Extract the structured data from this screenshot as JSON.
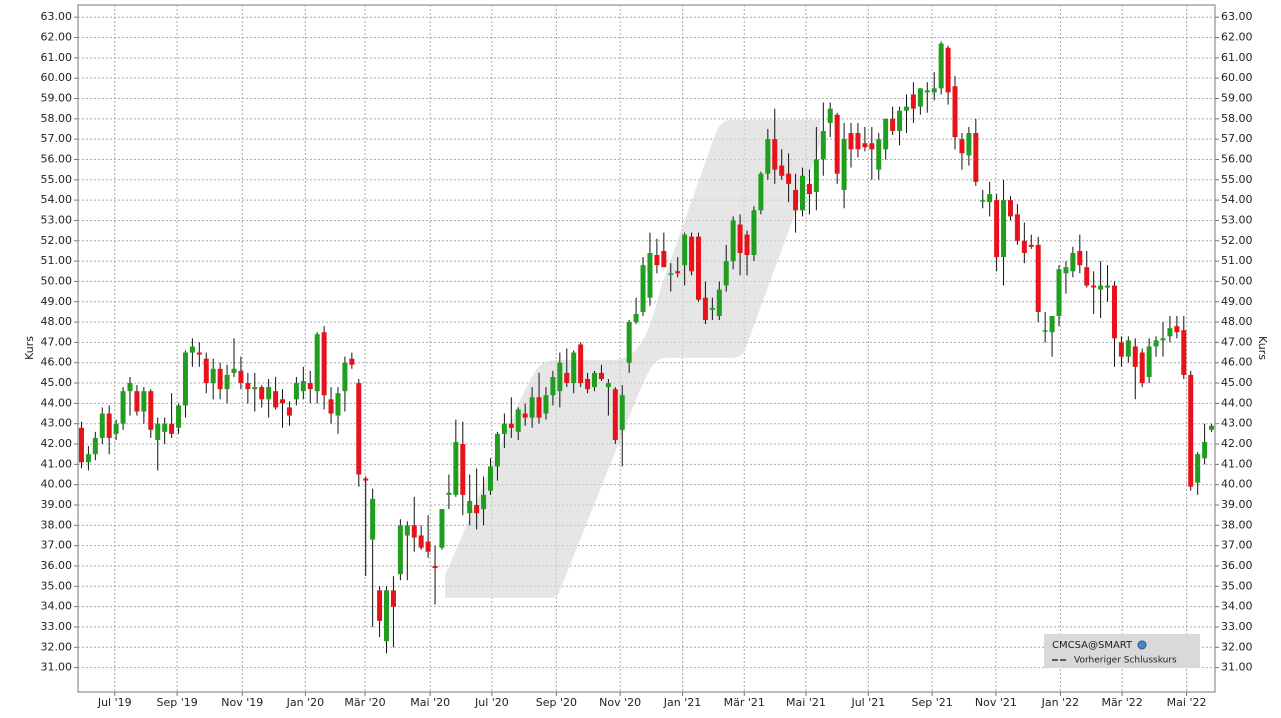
{
  "chart_data": {
    "type": "candlestick",
    "y_label": "Kurs",
    "grid": true,
    "legend": "bottom-right",
    "previous_close_label": "Vorheriger Schlusskurs",
    "xlim": [
      -0.5,
      163.5
    ],
    "xticks": [
      {
        "value": 4.8,
        "label": "Jul '19"
      },
      {
        "value": 13.8,
        "label": "Sep '19"
      },
      {
        "value": 23.2,
        "label": "Nov '19"
      },
      {
        "value": 32.3,
        "label": "Jan '20"
      },
      {
        "value": 40.9,
        "label": "Mär '20"
      },
      {
        "value": 50.3,
        "label": "Mai '20"
      },
      {
        "value": 59.2,
        "label": "Jul '20"
      },
      {
        "value": 68.5,
        "label": "Sep '20"
      },
      {
        "value": 77.7,
        "label": "Nov '20"
      },
      {
        "value": 86.7,
        "label": "Jan '21"
      },
      {
        "value": 95.6,
        "label": "Mär '21"
      },
      {
        "value": 104.5,
        "label": "Mai '21"
      },
      {
        "value": 113.5,
        "label": "Jul '21"
      },
      {
        "value": 122.7,
        "label": "Sep '21"
      },
      {
        "value": 131.9,
        "label": "Nov '21"
      },
      {
        "value": 141.2,
        "label": "Jan '22"
      },
      {
        "value": 150.1,
        "label": "Mär '22"
      },
      {
        "value": 159.4,
        "label": "Mai '22"
      }
    ],
    "ylim": [
      29.8,
      63.6
    ],
    "yticks": [
      {
        "value": 31,
        "label": "31.00"
      },
      {
        "value": 32,
        "label": "32.00"
      },
      {
        "value": 33,
        "label": "33.00"
      },
      {
        "value": 34,
        "label": "34.00"
      },
      {
        "value": 35,
        "label": "35.00"
      },
      {
        "value": 36,
        "label": "36.00"
      },
      {
        "value": 37,
        "label": "37.00"
      },
      {
        "value": 38,
        "label": "38.00"
      },
      {
        "value": 39,
        "label": "39.00"
      },
      {
        "value": 40,
        "label": "40.00"
      },
      {
        "value": 41,
        "label": "41.00"
      },
      {
        "value": 42,
        "label": "42.00"
      },
      {
        "value": 43,
        "label": "43.00"
      },
      {
        "value": 44,
        "label": "44.00"
      },
      {
        "value": 45,
        "label": "45.00"
      },
      {
        "value": 46,
        "label": "46.00"
      },
      {
        "value": 47,
        "label": "47.00"
      },
      {
        "value": 48,
        "label": "48.00"
      },
      {
        "value": 49,
        "label": "49.00"
      },
      {
        "value": 50,
        "label": "50.00"
      },
      {
        "value": 51,
        "label": "51.00"
      },
      {
        "value": 52,
        "label": "52.00"
      },
      {
        "value": 53,
        "label": "53.00"
      },
      {
        "value": 54,
        "label": "54.00"
      },
      {
        "value": 55,
        "label": "55.00"
      },
      {
        "value": 56,
        "label": "56.00"
      },
      {
        "value": 57,
        "label": "57.00"
      },
      {
        "value": 58,
        "label": "58.00"
      },
      {
        "value": 59,
        "label": "59.00"
      },
      {
        "value": 60,
        "label": "60.00"
      },
      {
        "value": 61,
        "label": "61.00"
      },
      {
        "value": 62,
        "label": "62.00"
      },
      {
        "value": 63,
        "label": "63.00"
      }
    ],
    "series": [
      {
        "name": "CMCSA@SMART",
        "up_color": "#1f9e1f",
        "down_color": "#e8121a",
        "values": [
          [
            42.8,
            43.1,
            40.8,
            41.1
          ],
          [
            41.1,
            41.9,
            40.7,
            41.5
          ],
          [
            41.5,
            42.6,
            41.2,
            42.3
          ],
          [
            42.3,
            43.8,
            42.0,
            43.5
          ],
          [
            43.5,
            43.9,
            41.5,
            42.3
          ],
          [
            42.5,
            43.2,
            42.2,
            43.0
          ],
          [
            43.0,
            44.8,
            42.7,
            44.6
          ],
          [
            44.6,
            45.3,
            43.4,
            45.0
          ],
          [
            44.6,
            44.9,
            43.4,
            43.6
          ],
          [
            43.6,
            44.8,
            43.0,
            44.6
          ],
          [
            44.6,
            44.7,
            42.3,
            42.7
          ],
          [
            42.2,
            43.3,
            40.7,
            43.0
          ],
          [
            42.6,
            43.3,
            42.0,
            43.0
          ],
          [
            43.0,
            44.5,
            42.3,
            42.5
          ],
          [
            42.8,
            44.0,
            42.5,
            43.9
          ],
          [
            43.9,
            46.6,
            43.3,
            46.5
          ],
          [
            46.5,
            47.2,
            45.8,
            46.8
          ],
          [
            46.5,
            47.0,
            45.8,
            46.4
          ],
          [
            46.2,
            46.5,
            44.5,
            45.0
          ],
          [
            45.0,
            46.2,
            44.2,
            45.7
          ],
          [
            45.7,
            46.0,
            44.2,
            44.7
          ],
          [
            44.7,
            45.9,
            44.0,
            45.4
          ],
          [
            45.5,
            47.2,
            45.3,
            45.7
          ],
          [
            45.6,
            46.3,
            44.7,
            45.0
          ],
          [
            45.0,
            45.5,
            44.0,
            44.7
          ],
          [
            44.7,
            45.5,
            43.6,
            44.8
          ],
          [
            44.8,
            44.9,
            43.8,
            44.2
          ],
          [
            44.2,
            45.2,
            43.3,
            44.8
          ],
          [
            44.6,
            45.3,
            43.7,
            43.8
          ],
          [
            44.2,
            44.7,
            42.8,
            44.0
          ],
          [
            43.8,
            44.1,
            42.9,
            43.4
          ],
          [
            44.2,
            45.3,
            43.9,
            45.0
          ],
          [
            44.6,
            45.8,
            44.2,
            45.1
          ],
          [
            45.0,
            45.6,
            44.0,
            44.7
          ],
          [
            44.6,
            47.5,
            44.0,
            47.4
          ],
          [
            47.5,
            47.8,
            43.7,
            44.4
          ],
          [
            44.2,
            44.8,
            43.0,
            43.5
          ],
          [
            43.4,
            44.8,
            42.5,
            44.5
          ],
          [
            44.6,
            46.3,
            43.6,
            46.0
          ],
          [
            46.2,
            46.5,
            45.7,
            45.9
          ],
          [
            45.0,
            45.2,
            39.9,
            40.5
          ],
          [
            40.3,
            40.4,
            35.5,
            40.2
          ],
          [
            37.3,
            39.8,
            33.0,
            39.3
          ],
          [
            34.8,
            35.0,
            32.5,
            33.3
          ],
          [
            32.3,
            35.0,
            31.7,
            34.8
          ],
          [
            34.8,
            35.5,
            32.0,
            34.0
          ],
          [
            35.6,
            38.3,
            35.3,
            38.0
          ],
          [
            37.5,
            38.2,
            35.3,
            38.0
          ],
          [
            38.0,
            39.4,
            36.7,
            37.4
          ],
          [
            37.5,
            38.0,
            36.8,
            36.9
          ],
          [
            37.2,
            38.5,
            36.4,
            36.7
          ],
          [
            36.0,
            37.0,
            34.1,
            35.9
          ],
          [
            36.9,
            38.8,
            36.8,
            38.8
          ],
          [
            39.5,
            40.5,
            38.8,
            39.6
          ],
          [
            39.5,
            43.2,
            39.4,
            42.1
          ],
          [
            42.0,
            43.1,
            38.5,
            39.5
          ],
          [
            38.6,
            40.5,
            38.0,
            39.2
          ],
          [
            39.0,
            40.8,
            37.8,
            38.6
          ],
          [
            38.8,
            40.4,
            38.0,
            39.5
          ],
          [
            39.7,
            41.3,
            39.5,
            40.9
          ],
          [
            40.9,
            42.6,
            40.2,
            42.5
          ],
          [
            42.5,
            43.5,
            41.8,
            43.0
          ],
          [
            43.0,
            44.3,
            42.3,
            42.8
          ],
          [
            42.6,
            43.8,
            42.2,
            43.7
          ],
          [
            43.5,
            44.0,
            42.9,
            43.3
          ],
          [
            43.3,
            44.8,
            42.8,
            44.3
          ],
          [
            44.3,
            45.5,
            43.0,
            43.3
          ],
          [
            43.5,
            44.8,
            43.2,
            44.4
          ],
          [
            44.4,
            45.6,
            43.9,
            45.3
          ],
          [
            44.6,
            46.5,
            43.8,
            46.0
          ],
          [
            45.5,
            46.7,
            44.8,
            45.0
          ],
          [
            45.0,
            46.6,
            44.5,
            46.5
          ],
          [
            46.9,
            47.0,
            44.8,
            45.0
          ],
          [
            45.2,
            45.5,
            44.5,
            44.7
          ],
          [
            44.8,
            45.6,
            44.6,
            45.5
          ],
          [
            45.5,
            45.9,
            45.1,
            45.2
          ],
          [
            44.8,
            45.2,
            43.4,
            45.0
          ],
          [
            44.7,
            44.8,
            42.0,
            42.2
          ],
          [
            42.7,
            44.9,
            40.9,
            44.4
          ],
          [
            46.0,
            48.1,
            45.5,
            48.0
          ],
          [
            48.0,
            49.2,
            47.9,
            48.4
          ],
          [
            48.5,
            51.2,
            48.3,
            50.8
          ],
          [
            49.2,
            52.4,
            48.8,
            51.4
          ],
          [
            51.3,
            52.1,
            50.4,
            50.8
          ],
          [
            51.5,
            52.4,
            50.7,
            50.7
          ],
          [
            50.4,
            50.9,
            49.5,
            50.4
          ],
          [
            50.5,
            51.2,
            50.2,
            50.4
          ],
          [
            50.8,
            52.4,
            49.8,
            52.3
          ],
          [
            52.2,
            52.4,
            50.3,
            50.5
          ],
          [
            52.2,
            52.4,
            49.0,
            49.1
          ],
          [
            49.2,
            50.0,
            47.9,
            48.1
          ],
          [
            48.6,
            49.2,
            48.1,
            48.7
          ],
          [
            48.3,
            50.0,
            48.1,
            49.6
          ],
          [
            49.8,
            51.8,
            49.5,
            51.0
          ],
          [
            51.0,
            53.2,
            50.6,
            53.0
          ],
          [
            52.8,
            53.3,
            50.3,
            51.4
          ],
          [
            52.3,
            52.5,
            50.3,
            51.3
          ],
          [
            51.3,
            53.7,
            51.0,
            53.5
          ],
          [
            53.5,
            55.4,
            53.3,
            55.3
          ],
          [
            55.3,
            57.5,
            55.0,
            57.0
          ],
          [
            57.0,
            58.5,
            54.8,
            55.5
          ],
          [
            55.7,
            56.5,
            55.0,
            55.2
          ],
          [
            55.3,
            56.3,
            53.9,
            54.8
          ],
          [
            54.5,
            55.3,
            52.4,
            53.5
          ],
          [
            53.5,
            55.6,
            53.2,
            55.2
          ],
          [
            54.8,
            55.5,
            53.3,
            54.3
          ],
          [
            54.4,
            57.6,
            53.5,
            56.0
          ],
          [
            56.0,
            58.8,
            55.2,
            57.4
          ],
          [
            57.8,
            58.8,
            57.1,
            58.5
          ],
          [
            58.2,
            58.3,
            54.8,
            55.3
          ],
          [
            54.5,
            57.8,
            53.6,
            57.0
          ],
          [
            57.3,
            57.8,
            55.6,
            56.5
          ],
          [
            57.3,
            57.8,
            56.1,
            56.5
          ],
          [
            56.8,
            57.6,
            56.4,
            56.6
          ],
          [
            56.8,
            57.6,
            55.0,
            56.5
          ],
          [
            55.5,
            57.3,
            55.0,
            57.0
          ],
          [
            56.5,
            58.0,
            56.0,
            58.0
          ],
          [
            58.0,
            58.6,
            57.2,
            57.4
          ],
          [
            57.4,
            58.6,
            56.7,
            58.4
          ],
          [
            58.4,
            59.2,
            57.3,
            58.6
          ],
          [
            59.2,
            59.8,
            57.8,
            58.5
          ],
          [
            58.6,
            59.5,
            58.2,
            59.5
          ],
          [
            59.3,
            59.8,
            58.3,
            59.4
          ],
          [
            59.3,
            60.3,
            58.9,
            59.5
          ],
          [
            59.5,
            61.8,
            59.2,
            61.7
          ],
          [
            61.5,
            61.6,
            58.7,
            59.3
          ],
          [
            59.6,
            60.1,
            56.5,
            57.1
          ],
          [
            57.0,
            57.3,
            55.5,
            56.3
          ],
          [
            56.2,
            57.6,
            55.7,
            57.3
          ],
          [
            57.3,
            58.0,
            54.7,
            54.9
          ],
          [
            54.0,
            54.5,
            53.6,
            54.0
          ],
          [
            53.9,
            54.9,
            53.2,
            54.3
          ],
          [
            54.0,
            54.3,
            50.5,
            51.2
          ],
          [
            51.2,
            55.0,
            49.8,
            54.0
          ],
          [
            54.0,
            54.2,
            53.0,
            53.2
          ],
          [
            53.3,
            53.8,
            51.8,
            52.0
          ],
          [
            52.0,
            52.9,
            50.9,
            51.4
          ],
          [
            51.8,
            52.3,
            51.6,
            51.7
          ],
          [
            51.8,
            52.2,
            48.0,
            48.5
          ],
          [
            47.6,
            48.5,
            47.0,
            47.6
          ],
          [
            47.5,
            48.3,
            46.3,
            48.3
          ],
          [
            48.3,
            50.8,
            47.8,
            50.6
          ],
          [
            50.4,
            51.0,
            49.4,
            50.7
          ],
          [
            50.5,
            51.7,
            50.2,
            51.4
          ],
          [
            51.5,
            52.3,
            50.4,
            50.8
          ],
          [
            50.7,
            51.5,
            49.7,
            49.8
          ],
          [
            49.8,
            50.5,
            48.4,
            49.7
          ],
          [
            49.6,
            51.0,
            48.2,
            49.8
          ],
          [
            49.7,
            50.8,
            49.0,
            49.8
          ],
          [
            49.8,
            50.0,
            45.8,
            47.2
          ],
          [
            47.0,
            47.3,
            45.8,
            46.3
          ],
          [
            46.3,
            47.3,
            46.0,
            47.1
          ],
          [
            46.8,
            47.2,
            44.2,
            45.8
          ],
          [
            46.5,
            46.7,
            44.8,
            45.0
          ],
          [
            45.3,
            47.2,
            45.0,
            46.8
          ],
          [
            46.8,
            47.3,
            46.3,
            47.1
          ],
          [
            47.1,
            48.0,
            46.3,
            47.2
          ],
          [
            47.3,
            48.3,
            47.0,
            47.7
          ],
          [
            47.8,
            48.3,
            47.2,
            47.5
          ],
          [
            47.6,
            48.3,
            45.2,
            45.4
          ],
          [
            45.4,
            45.6,
            39.7,
            39.9
          ],
          [
            40.1,
            41.6,
            39.5,
            41.5
          ],
          [
            41.3,
            43.0,
            41.0,
            42.1
          ],
          [
            42.7,
            43.0,
            42.6,
            42.9
          ]
        ]
      }
    ]
  }
}
